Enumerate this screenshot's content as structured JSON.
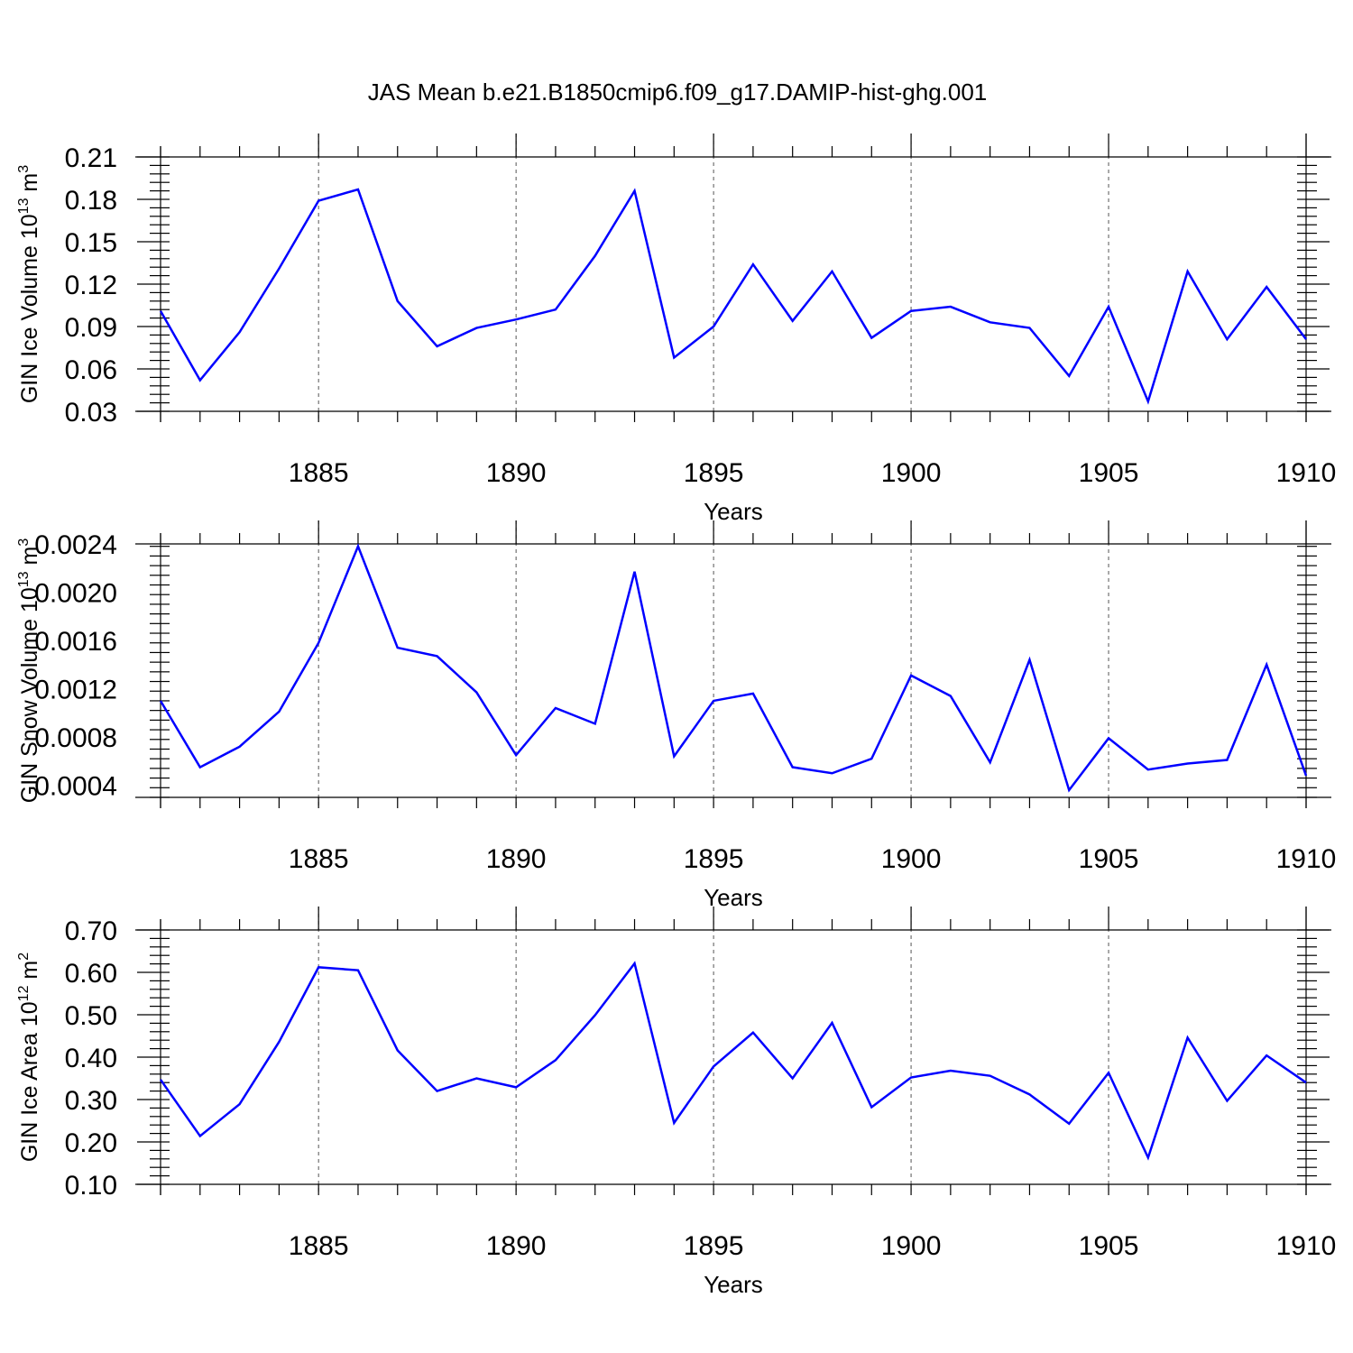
{
  "figure": {
    "title": "JAS Mean b.e21.B1850cmip6.f09_g17.DAMIP-hist-ghg.001",
    "line_color": "#0000ff"
  },
  "chart_data": [
    {
      "type": "line",
      "title": "",
      "xlabel": "Years",
      "ylabel": "GIN Ice Volume",
      "ylabel_unit": {
        "base": "10",
        "exp": "13",
        "unit": "m",
        "unit_exp": "3"
      },
      "xlim": [
        1881,
        1910
      ],
      "ylim": [
        0.03,
        0.21
      ],
      "x_ticks": [
        1885,
        1890,
        1895,
        1900,
        1905,
        1910
      ],
      "y_ticks": [
        "0.03",
        "0.06",
        "0.09",
        "0.12",
        "0.15",
        "0.18",
        "0.21"
      ],
      "grid": "vertical dashed at major x ticks",
      "x": [
        1881,
        1882,
        1883,
        1884,
        1885,
        1886,
        1887,
        1888,
        1889,
        1890,
        1891,
        1892,
        1893,
        1894,
        1895,
        1896,
        1897,
        1898,
        1899,
        1900,
        1901,
        1902,
        1903,
        1904,
        1905,
        1906,
        1907,
        1908,
        1909,
        1910
      ],
      "series": [
        {
          "values": [
            0.101,
            0.052,
            0.086,
            0.131,
            0.179,
            0.187,
            0.108,
            0.076,
            0.089,
            0.095,
            0.102,
            0.14,
            0.186,
            0.068,
            0.09,
            0.134,
            0.094,
            0.129,
            0.082,
            0.101,
            0.104,
            0.093,
            0.089,
            0.055,
            0.104,
            0.037,
            0.129,
            0.081,
            0.118,
            0.081
          ]
        }
      ]
    },
    {
      "type": "line",
      "title": "",
      "xlabel": "Years",
      "ylabel": "GIN Snow Volume",
      "ylabel_unit": {
        "base": "10",
        "exp": "13",
        "unit": "m",
        "unit_exp": "3"
      },
      "xlim": [
        1881,
        1910
      ],
      "ylim": [
        0.0003,
        0.0024
      ],
      "x_ticks": [
        1885,
        1890,
        1895,
        1900,
        1905,
        1910
      ],
      "y_ticks": [
        "0.0004",
        "0.0008",
        "0.0012",
        "0.0016",
        "0.0020",
        "0.0024"
      ],
      "grid": "vertical dashed at major x ticks",
      "x": [
        1881,
        1882,
        1883,
        1884,
        1885,
        1886,
        1887,
        1888,
        1889,
        1890,
        1891,
        1892,
        1893,
        1894,
        1895,
        1896,
        1897,
        1898,
        1899,
        1900,
        1901,
        1902,
        1903,
        1904,
        1905,
        1906,
        1907,
        1908,
        1909,
        1910
      ],
      "series": [
        {
          "values": [
            0.0011,
            0.00055,
            0.00072,
            0.00101,
            0.00158,
            0.00238,
            0.00154,
            0.00147,
            0.00117,
            0.00065,
            0.00104,
            0.00091,
            0.00217,
            0.00064,
            0.0011,
            0.00116,
            0.00055,
            0.0005,
            0.00062,
            0.00131,
            0.00114,
            0.00059,
            0.00144,
            0.00036,
            0.00079,
            0.00053,
            0.00058,
            0.00061,
            0.0014,
            0.00048
          ]
        }
      ]
    },
    {
      "type": "line",
      "title": "",
      "xlabel": "Years",
      "ylabel": "GIN Ice Area",
      "ylabel_unit": {
        "base": "10",
        "exp": "12",
        "unit": "m",
        "unit_exp": "2"
      },
      "xlim": [
        1881,
        1910
      ],
      "ylim": [
        0.1,
        0.7
      ],
      "x_ticks": [
        1885,
        1890,
        1895,
        1900,
        1905,
        1910
      ],
      "y_ticks": [
        "0.10",
        "0.20",
        "0.30",
        "0.40",
        "0.50",
        "0.60",
        "0.70"
      ],
      "grid": "vertical dashed at major x ticks",
      "x": [
        1881,
        1882,
        1883,
        1884,
        1885,
        1886,
        1887,
        1888,
        1889,
        1890,
        1891,
        1892,
        1893,
        1894,
        1895,
        1896,
        1897,
        1898,
        1899,
        1900,
        1901,
        1902,
        1903,
        1904,
        1905,
        1906,
        1907,
        1908,
        1909,
        1910
      ],
      "series": [
        {
          "values": [
            0.347,
            0.214,
            0.289,
            0.436,
            0.612,
            0.605,
            0.416,
            0.32,
            0.35,
            0.329,
            0.393,
            0.499,
            0.621,
            0.245,
            0.378,
            0.458,
            0.35,
            0.481,
            0.282,
            0.352,
            0.368,
            0.356,
            0.312,
            0.243,
            0.363,
            0.163,
            0.446,
            0.297,
            0.404,
            0.34
          ]
        }
      ]
    }
  ]
}
